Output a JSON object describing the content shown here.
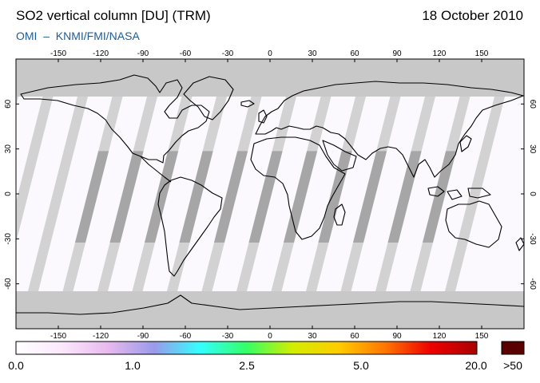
{
  "header": {
    "title": "SO2 vertical column [DU] (TRM)",
    "date": "18 October 2010",
    "credit": "OMI  –  KNMI/FMI/NASA"
  },
  "map": {
    "projection": "equirectangular",
    "lon_range": [
      -180,
      180
    ],
    "lat_range": [
      -90,
      90
    ],
    "lon_ticks": [
      "-150",
      "-120",
      "-90",
      "-60",
      "-30",
      "0",
      "30",
      "60",
      "90",
      "120",
      "150"
    ],
    "lat_ticks": [
      "60",
      "30",
      "0",
      "-30",
      "-60"
    ],
    "colors": {
      "no_data_polar": "#c8c8c8",
      "swath_gap_light": "#d2d2d2",
      "swath_gap_dark": "#a6a6a6",
      "background": "#fbf9fd",
      "coastline": "#000000"
    }
  },
  "colorbar": {
    "labels": [
      "0.0",
      "1.0",
      "2.5",
      "5.0",
      "20.0"
    ],
    "overflow_label": ">50",
    "overflow_color": "#5a0000",
    "gradient_stops": [
      "#ffffff",
      "#fbe8fb",
      "#e8b9ee",
      "#9a9aea",
      "#33ffff",
      "#33ff66",
      "#d2ee00",
      "#ffcc00",
      "#ff7700",
      "#ee0000",
      "#aa0000"
    ]
  }
}
